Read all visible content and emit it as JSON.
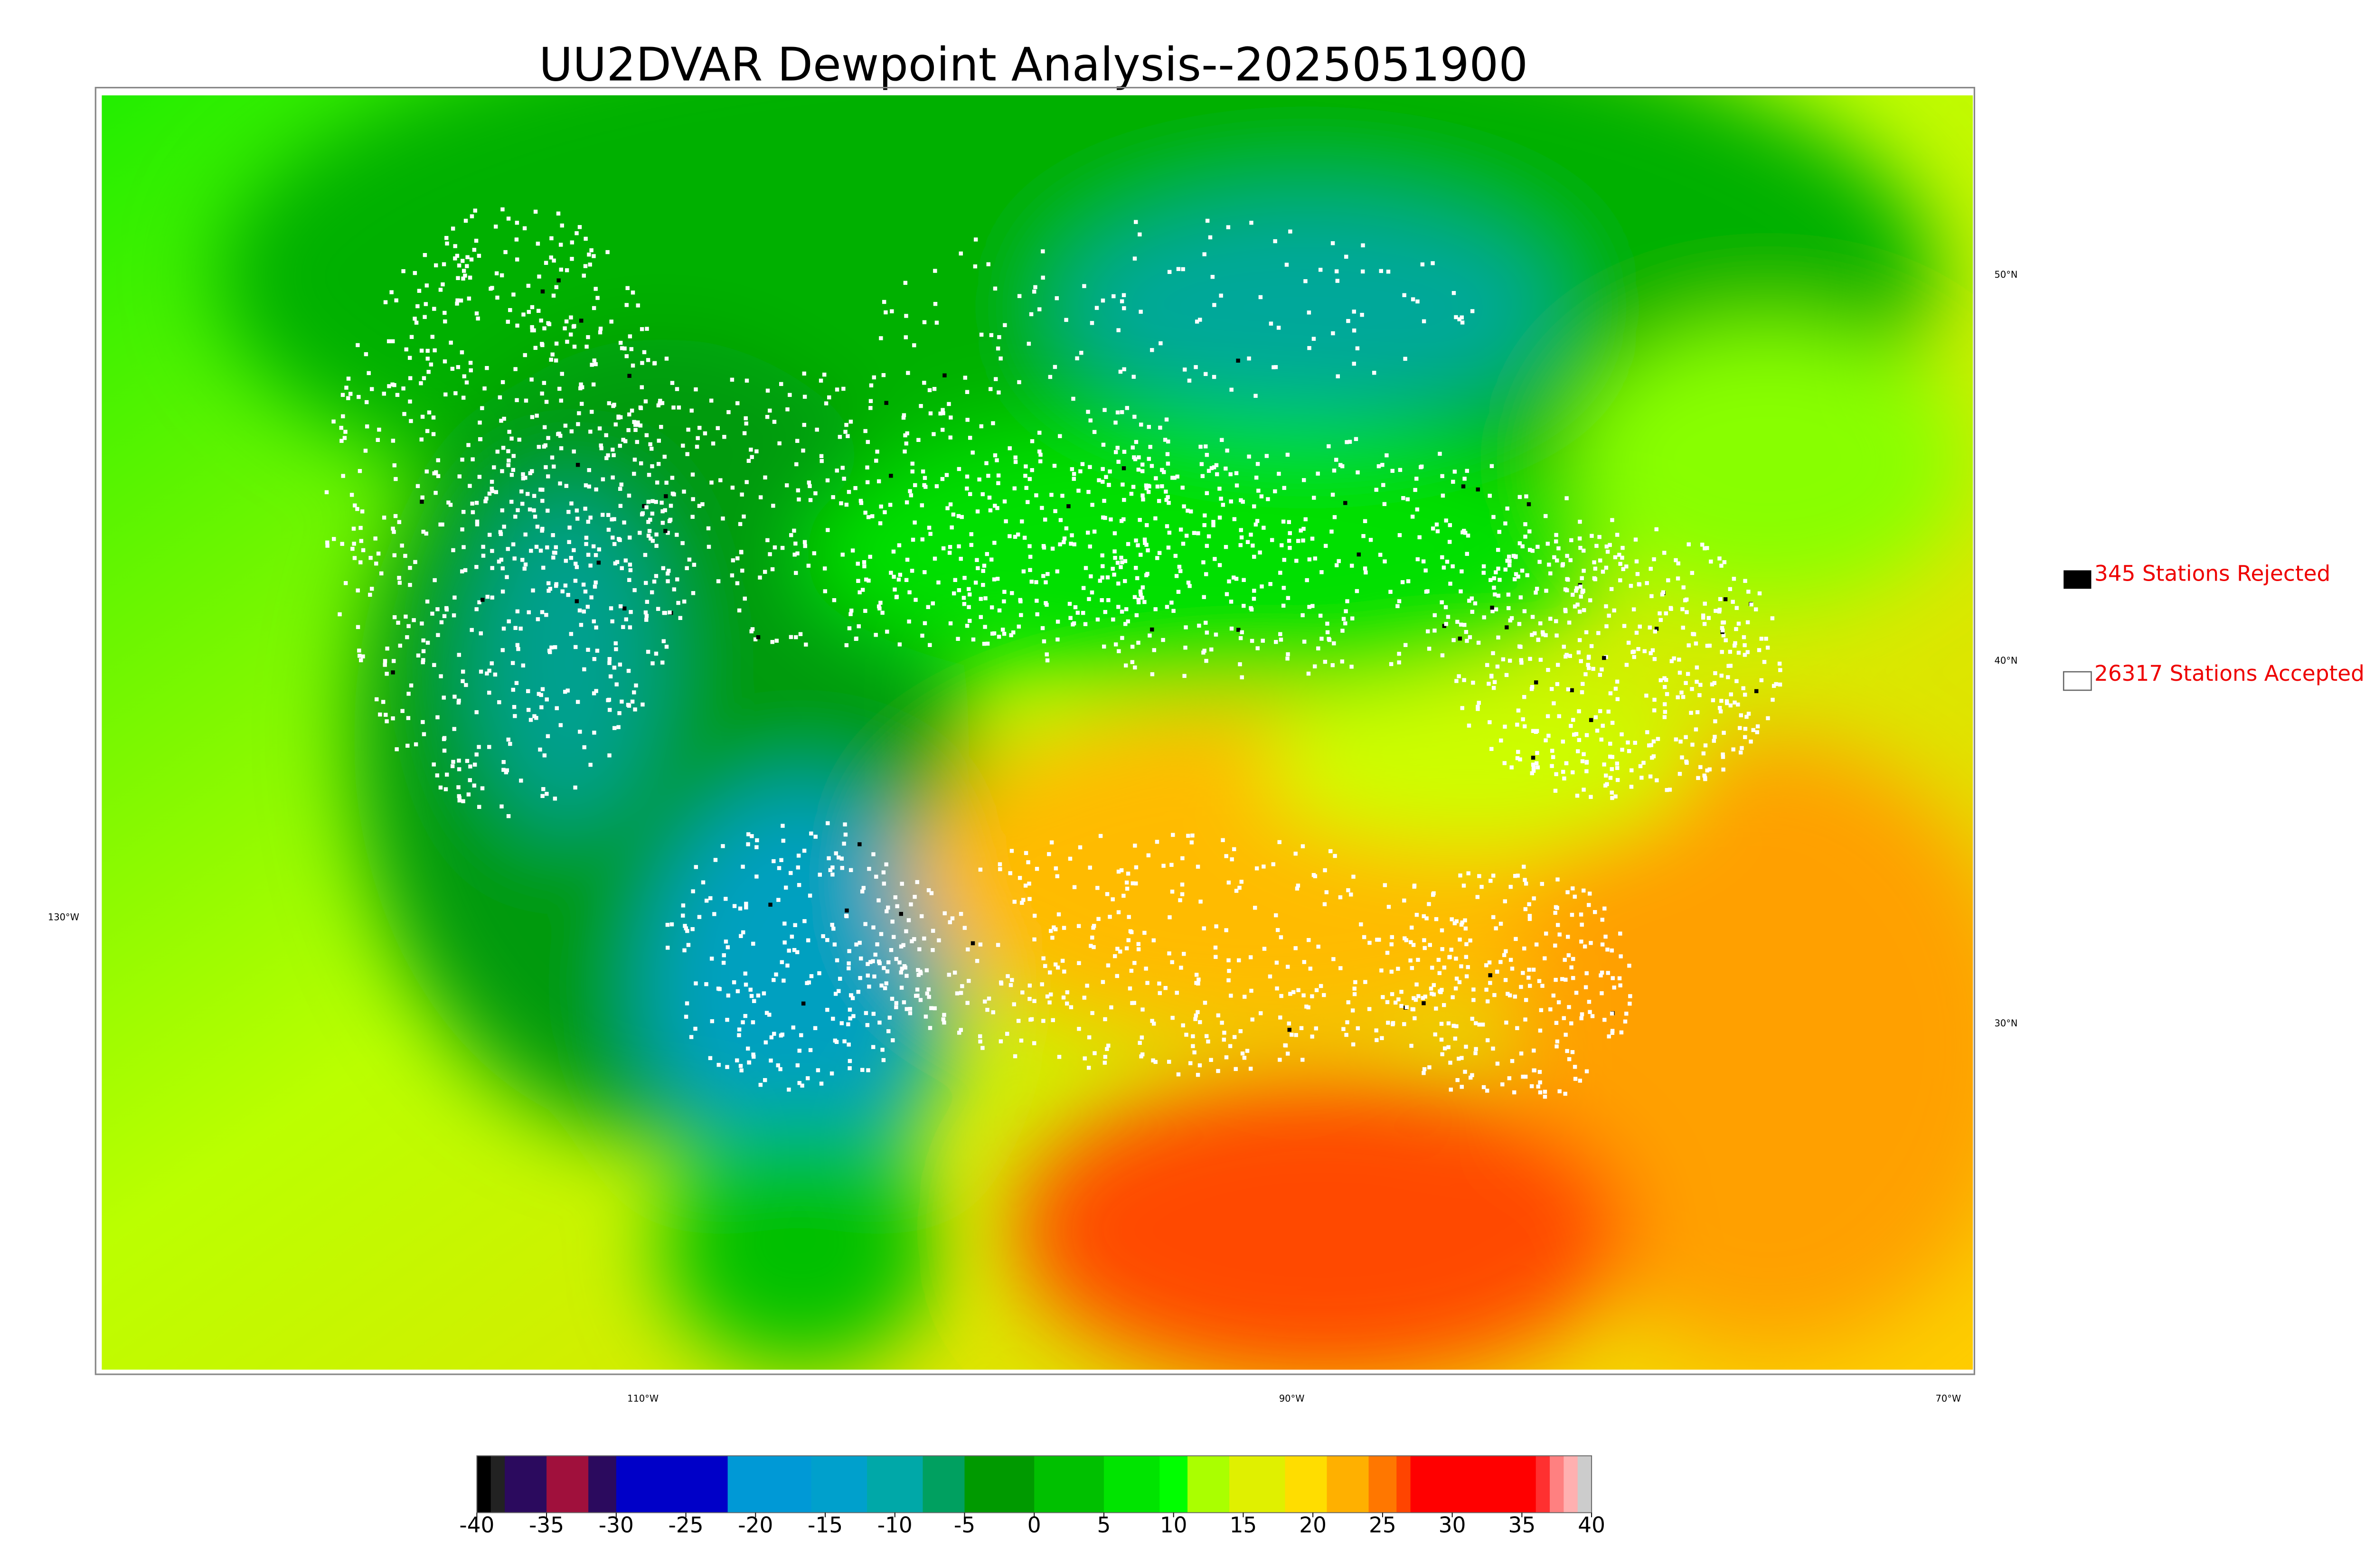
{
  "title": "UU2DVAR Dewpoint Analysis--2025051900",
  "legend": {
    "rejected": "345 Stations Rejected",
    "accepted": "26317 Stations Accepted"
  },
  "graticule": {
    "lat": [
      "50°N",
      "40°N",
      "30°N"
    ],
    "lon": [
      "130°W",
      "110°W",
      "90°W",
      "70°W"
    ]
  },
  "colorbar": {
    "lim": [
      -40,
      40
    ],
    "ticks": [
      -40,
      -35,
      -30,
      -25,
      -20,
      -15,
      -10,
      -5,
      0,
      5,
      10,
      15,
      20,
      25,
      30,
      35,
      40
    ],
    "segments": [
      {
        "from": -40,
        "to": -39,
        "color": "#000000"
      },
      {
        "from": -39,
        "to": -38,
        "color": "#222222"
      },
      {
        "from": -38,
        "to": -35,
        "color": "#2b0a5e"
      },
      {
        "from": -35,
        "to": -32,
        "color": "#a0103c"
      },
      {
        "from": -32,
        "to": -30,
        "color": "#2b0a5e"
      },
      {
        "from": -30,
        "to": -22,
        "color": "#0000c8"
      },
      {
        "from": -22,
        "to": -16,
        "color": "#0099d6"
      },
      {
        "from": -16,
        "to": -12,
        "color": "#00a0cc"
      },
      {
        "from": -12,
        "to": -8,
        "color": "#00a8a8"
      },
      {
        "from": -8,
        "to": -5,
        "color": "#00a060"
      },
      {
        "from": -5,
        "to": 0,
        "color": "#009a00"
      },
      {
        "from": 0,
        "to": 5,
        "color": "#00c000"
      },
      {
        "from": 5,
        "to": 9,
        "color": "#00e400"
      },
      {
        "from": 9,
        "to": 11,
        "color": "#00ff00"
      },
      {
        "from": 11,
        "to": 14,
        "color": "#aaff00"
      },
      {
        "from": 14,
        "to": 18,
        "color": "#e0f000"
      },
      {
        "from": 18,
        "to": 21,
        "color": "#ffdd00"
      },
      {
        "from": 21,
        "to": 24,
        "color": "#ffb000"
      },
      {
        "from": 24,
        "to": 26,
        "color": "#ff7700"
      },
      {
        "from": 26,
        "to": 27,
        "color": "#ff4400"
      },
      {
        "from": 27,
        "to": 36,
        "color": "#ff0000"
      },
      {
        "from": 36,
        "to": 37,
        "color": "#ff3030"
      },
      {
        "from": 37,
        "to": 38,
        "color": "#ff8080"
      },
      {
        "from": 38,
        "to": 39,
        "color": "#ffb0b0"
      },
      {
        "from": 39,
        "to": 40,
        "color": "#cccccc"
      }
    ]
  }
}
